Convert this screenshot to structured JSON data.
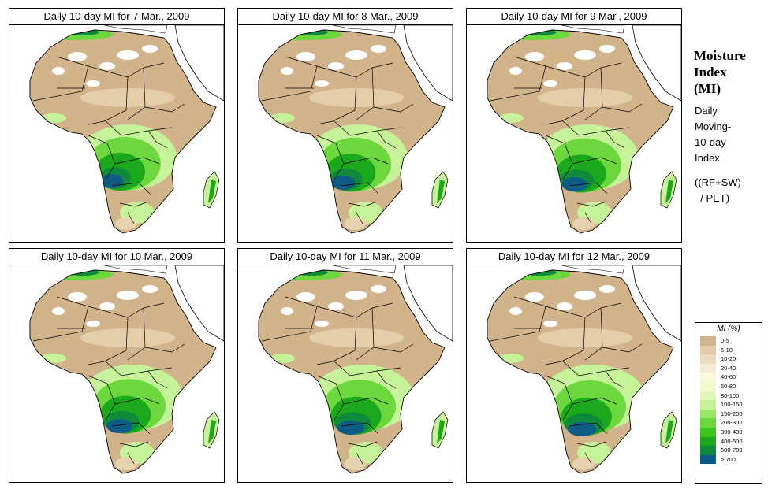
{
  "panels": [
    {
      "title": "Daily 10-day MI for  7 Mar., 2009",
      "variant": 0
    },
    {
      "title": "Daily 10-day MI for  8 Mar., 2009",
      "variant": 1
    },
    {
      "title": "Daily 10-day MI for  9 Mar., 2009",
      "variant": 2
    },
    {
      "title": "Daily 10-day MI for  10 Mar., 2009",
      "variant": 3
    },
    {
      "title": "Daily 10-day MI for  11 Mar., 2009",
      "variant": 4
    },
    {
      "title": "Daily 10-day MI for  12 Mar., 2009",
      "variant": 5
    }
  ],
  "side": {
    "title_lines": [
      "Moisture",
      "Index",
      "(MI)"
    ],
    "desc_lines": [
      "Daily",
      "Moving-",
      "10-day",
      "Index"
    ],
    "formula_lines": [
      "((RF+SW)",
      "  / PET)"
    ]
  },
  "legend": {
    "title": "MI (%)",
    "classes": [
      {
        "label": "0-5",
        "color": "#d2b48c"
      },
      {
        "label": "5-10",
        "color": "#e2cba6"
      },
      {
        "label": "10-20",
        "color": "#ecdcc0"
      },
      {
        "label": "20-40",
        "color": "#f6ecd6"
      },
      {
        "label": "40-60",
        "color": "#fbf8dc"
      },
      {
        "label": "60-80",
        "color": "#f2fbd0"
      },
      {
        "label": "80-100",
        "color": "#e2f8ba"
      },
      {
        "label": "100-150",
        "color": "#c6f29a"
      },
      {
        "label": "150-200",
        "color": "#9ee66a"
      },
      {
        "label": "200-300",
        "color": "#6cd83e"
      },
      {
        "label": "300-400",
        "color": "#3cc41e"
      },
      {
        "label": "400-500",
        "color": "#1ca81c"
      },
      {
        "label": "500-700",
        "color": "#0e8a3a"
      },
      {
        "label": "> 700",
        "color": "#0e5c86"
      }
    ]
  },
  "colors": {
    "desert": "#d2b48c",
    "dry": "#e8d3b0",
    "white": "#ffffff",
    "light": "#c6f29a",
    "mid": "#6cd83e",
    "green": "#1ca81c",
    "dark": "#0e8a3a",
    "wettest": "#0e5c86",
    "border": "#000000"
  }
}
